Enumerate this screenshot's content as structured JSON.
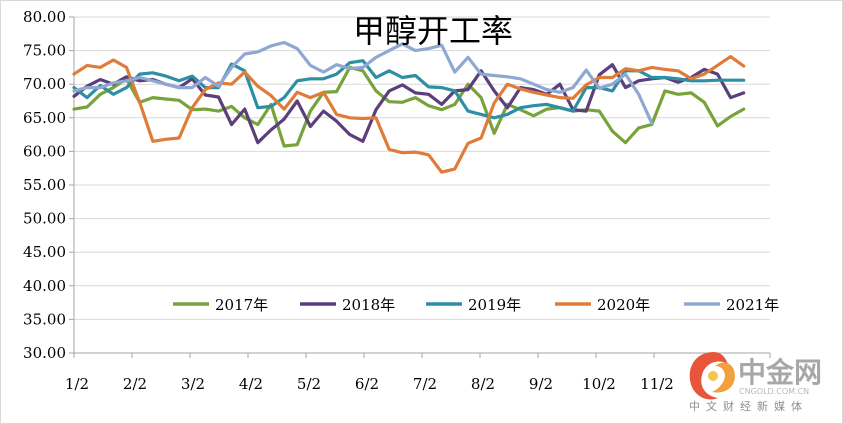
{
  "chart_data": {
    "type": "line",
    "title": "甲醇开工率",
    "xlabel": "",
    "ylabel": "",
    "ylim": [
      30,
      80
    ],
    "yticks": [
      "30.00",
      "35.00",
      "40.00",
      "45.00",
      "50.00",
      "55.00",
      "60.00",
      "65.00",
      "70.00",
      "75.00",
      "80.00"
    ],
    "xticks": [
      "1/2",
      "2/2",
      "3/2",
      "4/2",
      "5/2",
      "6/2",
      "7/2",
      "8/2",
      "9/2",
      "10/2",
      "11/2"
    ],
    "x_range_weeks": [
      0,
      53
    ],
    "grid": "horizontal",
    "legend": "bottom",
    "series": [
      {
        "name": "2017年",
        "color": "#77a33a",
        "values": [
          66.3,
          66.6,
          68.5,
          69.5,
          70.8,
          67.3,
          68.0,
          67.8,
          67.6,
          66.2,
          66.3,
          66.0,
          66.7,
          65.0,
          64.0,
          67.0,
          60.8,
          61.0,
          66.0,
          68.8,
          68.9,
          72.5,
          72.0,
          69.0,
          67.4,
          67.3,
          68.0,
          66.8,
          66.2,
          67.0,
          70.0,
          68.0,
          62.7,
          67.0,
          66.2,
          65.3,
          66.3,
          66.5,
          66.0,
          66.2,
          66.0,
          63.0,
          61.3,
          63.5,
          64.0,
          69.0,
          68.5,
          68.7,
          67.3,
          63.8,
          65.2,
          66.3
        ]
      },
      {
        "name": "2018年",
        "color": "#5b3f7d",
        "values": [
          68.2,
          69.7,
          70.7,
          70.0,
          71.1,
          70.5,
          70.7,
          70.0,
          69.5,
          70.8,
          68.4,
          68.1,
          64.0,
          66.3,
          61.3,
          63.2,
          64.8,
          67.5,
          63.7,
          66.0,
          64.5,
          62.5,
          61.5,
          66.2,
          69.0,
          69.9,
          68.7,
          68.5,
          67.0,
          69.0,
          69.2,
          72.0,
          69.0,
          66.5,
          69.5,
          69.2,
          68.5,
          70.0,
          66.2,
          66.0,
          71.4,
          72.9,
          69.5,
          70.5,
          70.8,
          71.0,
          70.3,
          71.0,
          72.2,
          71.5,
          68.0,
          68.7
        ]
      },
      {
        "name": "2019年",
        "color": "#2e8fa3",
        "values": [
          69.5,
          68.0,
          69.8,
          68.5,
          69.5,
          71.5,
          71.7,
          71.2,
          70.5,
          71.2,
          69.5,
          69.5,
          73.0,
          72.0,
          66.5,
          66.7,
          68.0,
          70.5,
          70.8,
          70.8,
          71.5,
          73.2,
          73.5,
          71.0,
          72.0,
          71.0,
          71.3,
          69.6,
          69.5,
          69.0,
          66.0,
          65.5,
          65.0,
          65.5,
          66.5,
          66.8,
          67.0,
          66.5,
          66.0,
          69.5,
          69.5,
          69.0,
          72.0,
          72.0,
          71.0,
          71.0,
          70.8,
          70.5,
          70.5,
          70.6,
          70.6,
          70.6
        ]
      },
      {
        "name": "2020年",
        "color": "#e07b39",
        "values": [
          71.5,
          72.8,
          72.5,
          73.6,
          72.5,
          67.3,
          61.5,
          61.8,
          62.0,
          66.5,
          69.2,
          70.2,
          70.0,
          71.8,
          69.7,
          68.3,
          66.3,
          68.8,
          68.0,
          68.8,
          65.5,
          65.0,
          64.9,
          65.0,
          60.3,
          59.8,
          59.9,
          59.5,
          56.9,
          57.4,
          61.2,
          62.0,
          67.2,
          70.0,
          69.3,
          68.8,
          68.4,
          68.0,
          67.9,
          69.9,
          71.0,
          71.0,
          72.3,
          72.0,
          72.5,
          72.2,
          72.0,
          70.8,
          71.5,
          72.8,
          74.1,
          72.7
        ]
      },
      {
        "name": "2021年",
        "color": "#8fa8d1",
        "values": [
          69.0,
          69.5,
          69.5,
          70.2,
          70.5,
          71.0,
          70.5,
          70.0,
          69.5,
          69.5,
          71.0,
          69.7,
          72.5,
          74.5,
          74.8,
          75.7,
          76.2,
          75.3,
          72.8,
          71.8,
          72.9,
          72.3,
          72.5,
          74.0,
          75.0,
          76.0,
          75.0,
          75.3,
          75.8,
          71.8,
          74.0,
          71.5,
          71.3,
          71.1,
          70.8,
          70.0,
          69.2,
          68.8,
          69.5,
          72.1,
          69.4,
          70.0,
          71.5,
          68.5,
          64.2
        ]
      }
    ]
  },
  "watermark": {
    "brand": "中金网",
    "domain": "CNGOLD.COM.CN",
    "tagline": "中文财经新媒体"
  }
}
